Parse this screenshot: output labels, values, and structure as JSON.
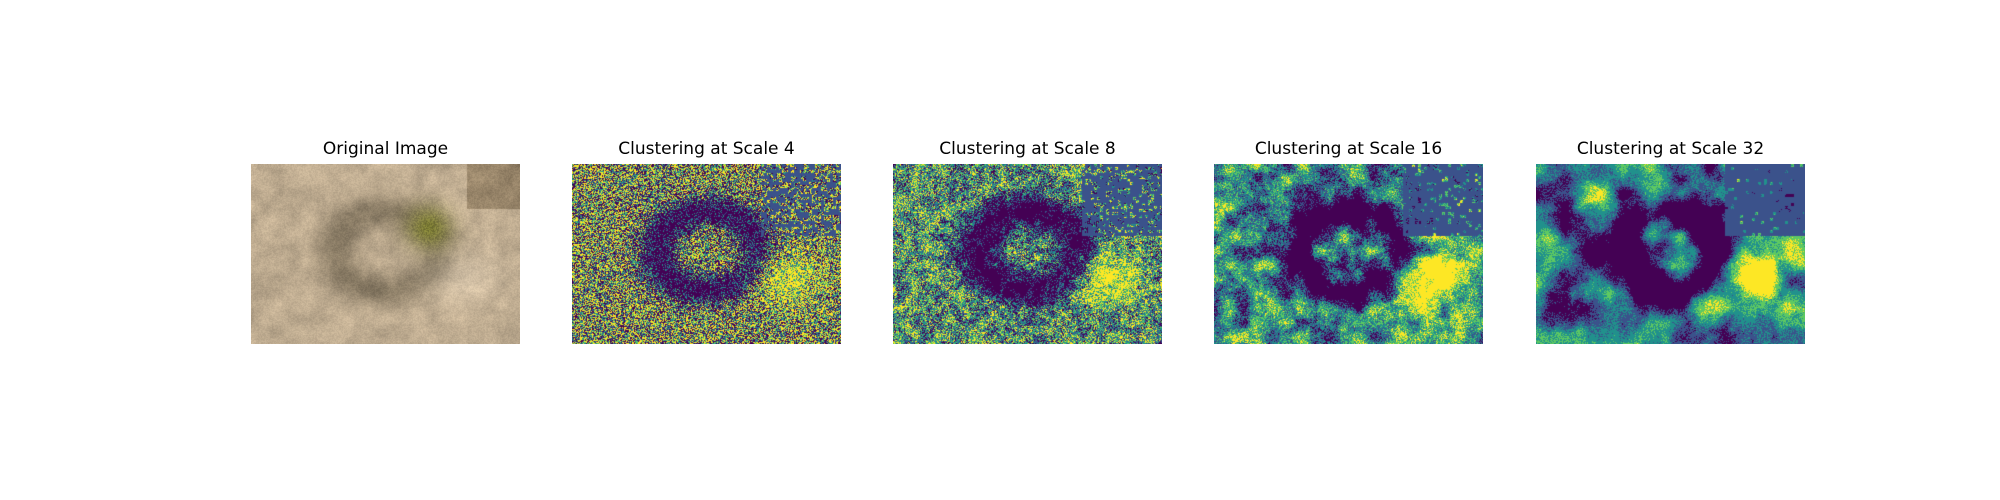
{
  "figure": {
    "panels": [
      {
        "title": "Original Image",
        "kind": "photo",
        "palette": [
          "#cbb79a",
          "#a89274",
          "#7c6a54",
          "#8a8a3a",
          "#b9aa92"
        ]
      },
      {
        "title": "Clustering at Scale 4",
        "kind": "cluster",
        "scale": 4,
        "noise": 0.9,
        "palette": [
          "#440154",
          "#3b528b",
          "#21918c",
          "#5ec962",
          "#fde725"
        ]
      },
      {
        "title": "Clustering at Scale 8",
        "kind": "cluster",
        "scale": 8,
        "noise": 0.55,
        "palette": [
          "#440154",
          "#3b528b",
          "#21918c",
          "#5ec962",
          "#fde725"
        ]
      },
      {
        "title": "Clustering at Scale 16",
        "kind": "cluster",
        "scale": 16,
        "noise": 0.3,
        "palette": [
          "#440154",
          "#3b528b",
          "#21918c",
          "#5ec962",
          "#fde725"
        ]
      },
      {
        "title": "Clustering at Scale 32",
        "kind": "cluster",
        "scale": 32,
        "noise": 0.15,
        "palette": [
          "#440154",
          "#3b528b",
          "#21918c",
          "#5ec962",
          "#fde725"
        ]
      }
    ]
  }
}
